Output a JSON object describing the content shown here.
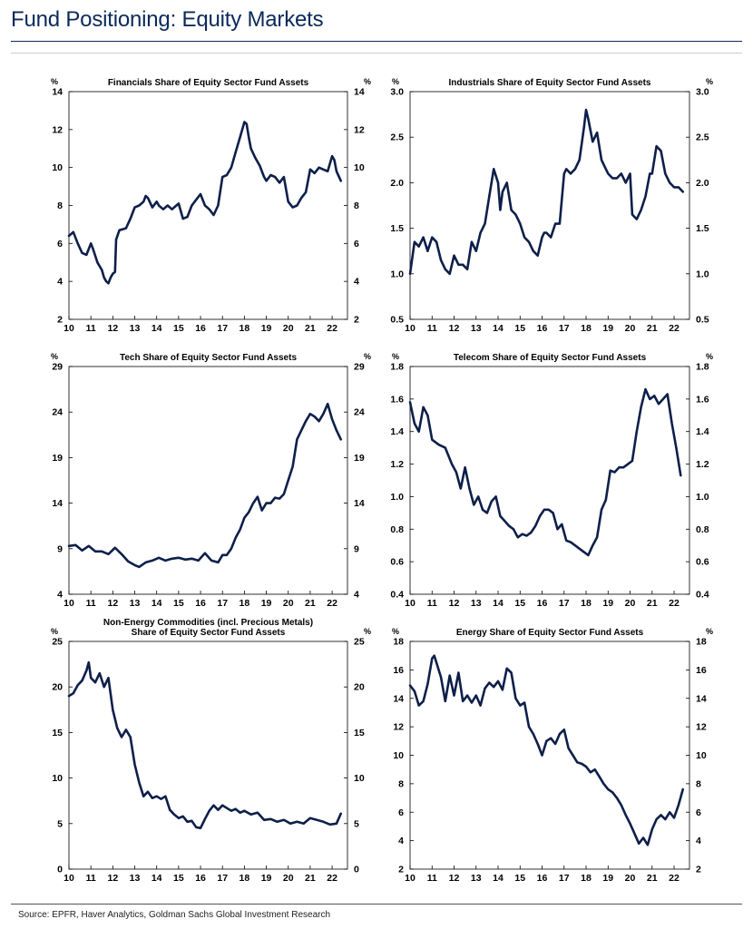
{
  "page": {
    "title": "Fund Positioning: Equity Markets",
    "source": "Source: EPFR, Haver Analytics, Goldman Sachs Global Investment Research",
    "line_color": "#0d1f4a"
  },
  "chart_data": [
    {
      "type": "line",
      "title": [
        "Financials Share of Equity Sector Fund Assets"
      ],
      "unit_left": "%",
      "unit_right": "%",
      "ylim": [
        2,
        14
      ],
      "yticks": [
        2,
        4,
        6,
        8,
        10,
        12,
        14
      ],
      "ytick_decimals": 0,
      "xlim": [
        10,
        22.7
      ],
      "xticks": [
        10,
        11,
        12,
        13,
        14,
        15,
        16,
        17,
        18,
        19,
        20,
        21,
        22
      ],
      "series": [
        {
          "x": [
            10.0,
            10.2,
            10.4,
            10.6,
            10.8,
            11.0,
            11.1,
            11.3,
            11.5,
            11.6,
            11.7,
            11.8,
            11.9,
            12.0,
            12.1,
            12.15,
            12.3,
            12.6,
            12.8,
            13.0,
            13.2,
            13.4,
            13.5,
            13.6,
            13.8,
            14.0,
            14.1,
            14.3,
            14.5,
            14.7,
            14.9,
            15.0,
            15.2,
            15.4,
            15.6,
            15.8,
            16.0,
            16.2,
            16.4,
            16.6,
            16.8,
            17.0,
            17.2,
            17.4,
            17.6,
            17.8,
            18.0,
            18.1,
            18.2,
            18.3,
            18.5,
            18.7,
            18.9,
            19.0,
            19.2,
            19.4,
            19.6,
            19.8,
            20.0,
            20.2,
            20.4,
            20.6,
            20.8,
            21.0,
            21.2,
            21.4,
            21.6,
            21.8,
            22.0,
            22.1,
            22.2,
            22.4
          ],
          "y": [
            6.4,
            6.6,
            6.0,
            5.5,
            5.4,
            6.0,
            5.7,
            5.0,
            4.6,
            4.2,
            4.0,
            3.9,
            4.2,
            4.4,
            4.5,
            6.2,
            6.7,
            6.8,
            7.3,
            7.9,
            8.0,
            8.2,
            8.5,
            8.4,
            7.9,
            8.2,
            8.0,
            7.8,
            8.0,
            7.8,
            8.0,
            8.1,
            7.3,
            7.4,
            8.0,
            8.3,
            8.6,
            8.0,
            7.8,
            7.5,
            8.0,
            9.5,
            9.6,
            10.0,
            10.8,
            11.6,
            12.4,
            12.3,
            11.6,
            11.0,
            10.5,
            10.1,
            9.5,
            9.3,
            9.6,
            9.5,
            9.2,
            9.5,
            8.2,
            7.9,
            8.0,
            8.4,
            8.7,
            9.9,
            9.7,
            10.0,
            9.9,
            9.8,
            10.6,
            10.4,
            9.8,
            9.3
          ]
        }
      ]
    },
    {
      "type": "line",
      "title": [
        "Industrials Share of Equity Sector Fund Assets"
      ],
      "unit_left": "%",
      "unit_right": "%",
      "ylim": [
        0.5,
        3.0
      ],
      "yticks": [
        0.5,
        1.0,
        1.5,
        2.0,
        2.5,
        3.0
      ],
      "ytick_decimals": 1,
      "xlim": [
        10,
        22.7
      ],
      "xticks": [
        10,
        11,
        12,
        13,
        14,
        15,
        16,
        17,
        18,
        19,
        20,
        21,
        22
      ],
      "series": [
        {
          "x": [
            10.0,
            10.2,
            10.4,
            10.6,
            10.8,
            11.0,
            11.2,
            11.4,
            11.6,
            11.8,
            12.0,
            12.2,
            12.4,
            12.6,
            12.8,
            13.0,
            13.2,
            13.4,
            13.6,
            13.8,
            14.0,
            14.1,
            14.2,
            14.4,
            14.6,
            14.8,
            15.0,
            15.2,
            15.4,
            15.6,
            15.8,
            16.0,
            16.1,
            16.2,
            16.4,
            16.6,
            16.8,
            17.0,
            17.1,
            17.3,
            17.5,
            17.7,
            17.9,
            18.0,
            18.1,
            18.3,
            18.5,
            18.7,
            18.9,
            19.0,
            19.2,
            19.4,
            19.6,
            19.8,
            20.0,
            20.1,
            20.3,
            20.5,
            20.7,
            20.9,
            21.0,
            21.2,
            21.4,
            21.6,
            21.8,
            22.0,
            22.2,
            22.4
          ],
          "y": [
            1.0,
            1.35,
            1.3,
            1.4,
            1.25,
            1.4,
            1.35,
            1.15,
            1.05,
            1.0,
            1.2,
            1.1,
            1.1,
            1.05,
            1.35,
            1.25,
            1.45,
            1.55,
            1.85,
            2.15,
            2.0,
            1.7,
            1.9,
            2.0,
            1.7,
            1.65,
            1.55,
            1.4,
            1.35,
            1.25,
            1.2,
            1.4,
            1.45,
            1.45,
            1.4,
            1.55,
            1.55,
            2.1,
            2.15,
            2.1,
            2.15,
            2.25,
            2.6,
            2.8,
            2.7,
            2.45,
            2.55,
            2.25,
            2.15,
            2.1,
            2.05,
            2.05,
            2.1,
            2.0,
            2.1,
            1.65,
            1.6,
            1.7,
            1.85,
            2.1,
            2.1,
            2.4,
            2.35,
            2.1,
            2.0,
            1.95,
            1.95,
            1.9
          ]
        }
      ]
    },
    {
      "type": "line",
      "title": [
        "Tech Share of Equity Sector Fund Assets"
      ],
      "unit_left": "%",
      "unit_right": "%",
      "ylim": [
        4,
        29
      ],
      "yticks": [
        4,
        9,
        14,
        19,
        24,
        29
      ],
      "ytick_decimals": 0,
      "xlim": [
        10,
        22.7
      ],
      "xticks": [
        10,
        11,
        12,
        13,
        14,
        15,
        16,
        17,
        18,
        19,
        20,
        21,
        22
      ],
      "series": [
        {
          "x": [
            10.0,
            10.3,
            10.6,
            10.9,
            11.2,
            11.5,
            11.8,
            12.1,
            12.4,
            12.7,
            13.0,
            13.2,
            13.5,
            13.8,
            14.1,
            14.4,
            14.7,
            15.0,
            15.3,
            15.6,
            15.9,
            16.2,
            16.5,
            16.8,
            17.0,
            17.2,
            17.4,
            17.6,
            17.8,
            18.0,
            18.2,
            18.4,
            18.6,
            18.8,
            19.0,
            19.2,
            19.4,
            19.6,
            19.8,
            20.0,
            20.2,
            20.4,
            20.6,
            20.8,
            21.0,
            21.2,
            21.4,
            21.6,
            21.8,
            22.0,
            22.2,
            22.4
          ],
          "y": [
            9.3,
            9.4,
            8.8,
            9.3,
            8.7,
            8.7,
            8.4,
            9.1,
            8.4,
            7.6,
            7.2,
            7.0,
            7.5,
            7.7,
            8.0,
            7.7,
            7.9,
            8.0,
            7.8,
            7.9,
            7.7,
            8.5,
            7.7,
            7.5,
            8.3,
            8.3,
            9.0,
            10.2,
            11.1,
            12.4,
            13.0,
            14.0,
            14.7,
            13.2,
            14.0,
            14.0,
            14.6,
            14.5,
            15.0,
            16.5,
            18.0,
            21.0,
            22.0,
            23.0,
            23.8,
            23.5,
            23.0,
            23.8,
            24.9,
            23.2,
            22.0,
            21.0
          ]
        }
      ]
    },
    {
      "type": "line",
      "title": [
        "Telecom Share of Equity Sector Fund Assets"
      ],
      "unit_left": "%",
      "unit_right": "%",
      "ylim": [
        0.4,
        1.8
      ],
      "yticks": [
        0.4,
        0.6,
        0.8,
        1.0,
        1.2,
        1.4,
        1.6,
        1.8
      ],
      "ytick_decimals": 1,
      "xlim": [
        10,
        22.7
      ],
      "xticks": [
        10,
        11,
        12,
        13,
        14,
        15,
        16,
        17,
        18,
        19,
        20,
        21,
        22
      ],
      "series": [
        {
          "x": [
            10.0,
            10.2,
            10.4,
            10.6,
            10.8,
            11.0,
            11.3,
            11.6,
            11.9,
            12.1,
            12.3,
            12.5,
            12.7,
            12.9,
            13.1,
            13.3,
            13.5,
            13.7,
            13.9,
            14.1,
            14.3,
            14.5,
            14.7,
            14.9,
            15.1,
            15.3,
            15.5,
            15.7,
            15.9,
            16.1,
            16.3,
            16.5,
            16.7,
            16.9,
            17.1,
            17.3,
            17.5,
            17.7,
            17.9,
            18.1,
            18.3,
            18.5,
            18.7,
            18.9,
            19.1,
            19.3,
            19.5,
            19.7,
            19.9,
            20.1,
            20.3,
            20.5,
            20.7,
            20.9,
            21.1,
            21.3,
            21.5,
            21.7,
            21.9,
            22.1,
            22.3
          ],
          "y": [
            1.58,
            1.45,
            1.4,
            1.55,
            1.5,
            1.35,
            1.32,
            1.3,
            1.2,
            1.15,
            1.05,
            1.18,
            1.05,
            0.95,
            1.0,
            0.92,
            0.9,
            0.97,
            1.0,
            0.88,
            0.85,
            0.82,
            0.8,
            0.75,
            0.77,
            0.76,
            0.78,
            0.82,
            0.88,
            0.92,
            0.92,
            0.9,
            0.8,
            0.83,
            0.73,
            0.72,
            0.7,
            0.68,
            0.66,
            0.64,
            0.7,
            0.75,
            0.92,
            0.98,
            1.16,
            1.15,
            1.18,
            1.18,
            1.2,
            1.22,
            1.4,
            1.55,
            1.66,
            1.6,
            1.62,
            1.57,
            1.6,
            1.63,
            1.45,
            1.3,
            1.13
          ]
        }
      ]
    },
    {
      "type": "line",
      "title": [
        "Non-Energy Commodities (incl. Precious Metals)",
        "Share of Equity Sector Fund Assets"
      ],
      "unit_left": "%",
      "unit_right": "%",
      "ylim": [
        0,
        25
      ],
      "yticks": [
        0,
        5,
        10,
        15,
        20,
        25
      ],
      "ytick_decimals": 0,
      "xlim": [
        10,
        22.7
      ],
      "xticks": [
        10,
        11,
        12,
        13,
        14,
        15,
        16,
        17,
        18,
        19,
        20,
        21,
        22
      ],
      "series": [
        {
          "x": [
            10.0,
            10.2,
            10.4,
            10.6,
            10.8,
            10.9,
            11.0,
            11.2,
            11.4,
            11.6,
            11.8,
            12.0,
            12.2,
            12.4,
            12.6,
            12.8,
            13.0,
            13.2,
            13.4,
            13.6,
            13.8,
            14.0,
            14.2,
            14.4,
            14.6,
            14.8,
            15.0,
            15.2,
            15.4,
            15.6,
            15.8,
            16.0,
            16.2,
            16.4,
            16.6,
            16.8,
            17.0,
            17.2,
            17.4,
            17.6,
            17.8,
            18.0,
            18.3,
            18.6,
            18.9,
            19.2,
            19.5,
            19.8,
            20.1,
            20.4,
            20.7,
            21.0,
            21.3,
            21.6,
            21.9,
            22.2,
            22.4
          ],
          "y": [
            19.0,
            19.3,
            20.2,
            20.7,
            21.8,
            22.7,
            21.0,
            20.5,
            21.5,
            20.0,
            21.0,
            17.5,
            15.5,
            14.5,
            15.3,
            14.5,
            11.5,
            9.5,
            8.0,
            8.5,
            7.8,
            8.0,
            7.7,
            8.0,
            6.5,
            6.0,
            5.6,
            5.8,
            5.2,
            5.3,
            4.6,
            4.5,
            5.5,
            6.4,
            7.0,
            6.5,
            7.0,
            6.7,
            6.4,
            6.6,
            6.2,
            6.4,
            6.0,
            6.2,
            5.4,
            5.5,
            5.2,
            5.4,
            5.0,
            5.2,
            5.0,
            5.6,
            5.4,
            5.2,
            4.9,
            5.0,
            6.1
          ]
        }
      ]
    },
    {
      "type": "line",
      "title": [
        "Energy Share of Equity Sector Fund Assets"
      ],
      "unit_left": "%",
      "unit_right": "%",
      "ylim": [
        2,
        18
      ],
      "yticks": [
        2,
        4,
        6,
        8,
        10,
        12,
        14,
        16,
        18
      ],
      "ytick_decimals": 0,
      "xlim": [
        10,
        22.7
      ],
      "xticks": [
        10,
        11,
        12,
        13,
        14,
        15,
        16,
        17,
        18,
        19,
        20,
        21,
        22
      ],
      "series": [
        {
          "x": [
            10.0,
            10.2,
            10.4,
            10.6,
            10.8,
            11.0,
            11.1,
            11.2,
            11.4,
            11.6,
            11.8,
            12.0,
            12.2,
            12.4,
            12.6,
            12.8,
            13.0,
            13.2,
            13.4,
            13.6,
            13.8,
            14.0,
            14.2,
            14.4,
            14.6,
            14.8,
            15.0,
            15.2,
            15.4,
            15.6,
            15.8,
            16.0,
            16.2,
            16.4,
            16.6,
            16.8,
            17.0,
            17.2,
            17.4,
            17.6,
            17.8,
            18.0,
            18.2,
            18.4,
            18.6,
            18.8,
            19.0,
            19.2,
            19.4,
            19.6,
            19.8,
            20.0,
            20.2,
            20.4,
            20.6,
            20.8,
            21.0,
            21.2,
            21.4,
            21.6,
            21.8,
            22.0,
            22.2,
            22.4
          ],
          "y": [
            14.9,
            14.5,
            13.5,
            13.8,
            15.0,
            16.8,
            17.0,
            16.5,
            15.5,
            13.8,
            15.6,
            14.2,
            15.8,
            13.8,
            14.2,
            13.7,
            14.2,
            13.5,
            14.7,
            15.1,
            14.8,
            15.2,
            14.6,
            16.1,
            15.8,
            14.0,
            13.5,
            13.7,
            12.0,
            11.5,
            10.8,
            10.0,
            11.0,
            11.2,
            10.8,
            11.5,
            11.8,
            10.5,
            10.0,
            9.5,
            9.4,
            9.2,
            8.8,
            9.0,
            8.5,
            8.0,
            7.6,
            7.4,
            7.0,
            6.5,
            5.8,
            5.2,
            4.5,
            3.8,
            4.2,
            3.7,
            4.8,
            5.5,
            5.8,
            5.5,
            6.0,
            5.6,
            6.5,
            7.6
          ]
        }
      ]
    }
  ]
}
